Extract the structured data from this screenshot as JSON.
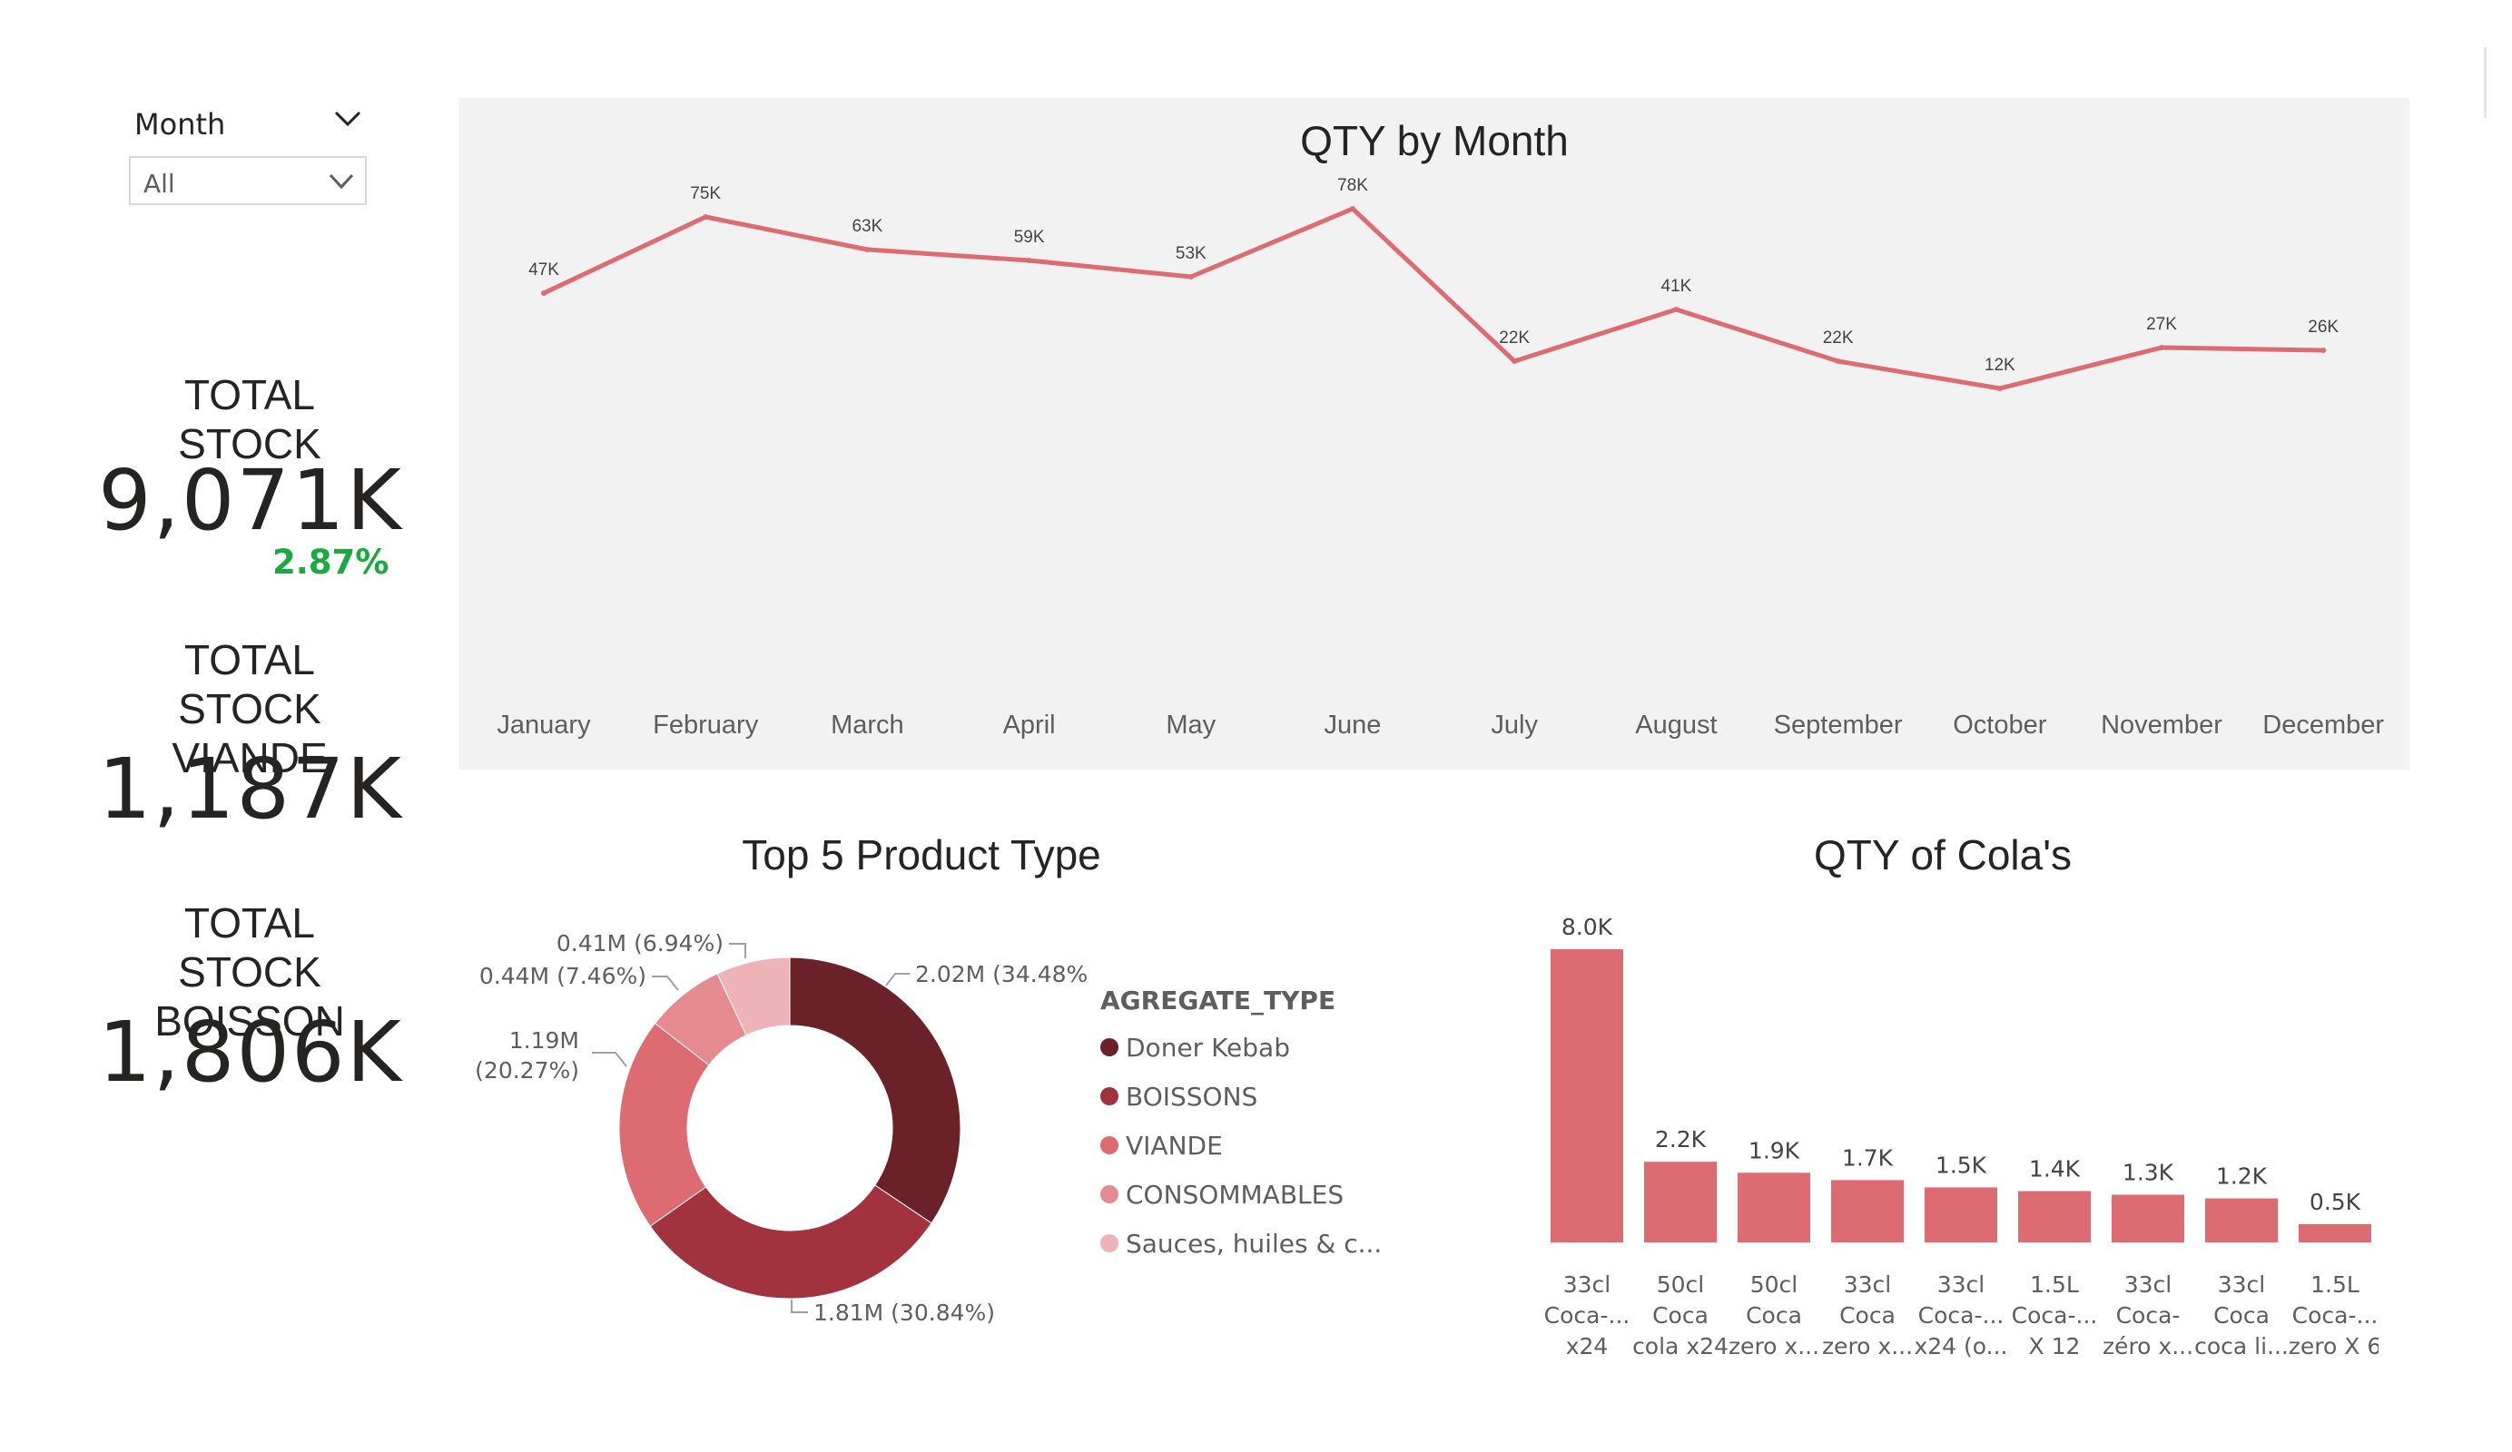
{
  "slicer": {
    "title": "Month",
    "value": "All"
  },
  "kpis": {
    "total_stock": {
      "label": "TOTAL STOCK",
      "value": "9,071K",
      "delta": "2.87%"
    },
    "total_stock_viande": {
      "label_line1": "TOTAL STOCK",
      "label_line2": "VIANDE",
      "value": "1,187K"
    },
    "total_stock_boisson": {
      "label_line1": "TOTAL STOCK",
      "label_line2": "BOISSON",
      "value": "1,806K"
    }
  },
  "colors": {
    "line": "#dd6b72",
    "bar": "#dd6b72",
    "panel_bg": "#f2f2f2",
    "delta_green": "#1aab40",
    "donut": [
      "#6b2128",
      "#a1323e",
      "#dd6b72",
      "#e58b90",
      "#eeb3b6"
    ]
  },
  "icons": {
    "slicer_toggle": "chevron-down-icon",
    "dropdown": "chevron-down-icon"
  },
  "chart_data": [
    {
      "type": "line",
      "title": "QTY by Month",
      "categories": [
        "January",
        "February",
        "March",
        "April",
        "May",
        "June",
        "July",
        "August",
        "September",
        "October",
        "November",
        "December"
      ],
      "values": [
        47,
        75,
        63,
        59,
        53,
        78,
        22,
        41,
        22,
        12,
        27,
        26
      ],
      "value_unit": "K",
      "data_labels": [
        "47K",
        "75K",
        "63K",
        "59K",
        "53K",
        "78K",
        "22K",
        "41K",
        "22K",
        "12K",
        "27K",
        "26K"
      ],
      "xlabel": "",
      "ylabel": "",
      "ylim": [
        0,
        90
      ],
      "grid": false
    },
    {
      "type": "pie",
      "donut": true,
      "title": "Top 5 Product Type",
      "legend_title": "AGREGATE_TYPE",
      "legend_position": "right",
      "slices": [
        {
          "name": "Doner Kebab",
          "value": 2.02,
          "label": "2.02M (34.48%)"
        },
        {
          "name": "BOISSONS",
          "value": 1.81,
          "label": "1.81M (30.84%)"
        },
        {
          "name": "VIANDE",
          "value": 1.19,
          "label_line1": "1.19M",
          "label_line2": "(20.27%)"
        },
        {
          "name": "CONSOMMABLES",
          "value": 0.44,
          "label": "0.44M (7.46%)"
        },
        {
          "name": "Sauces, huiles & c...",
          "value": 0.41,
          "label": "0.41M (6.94%)"
        }
      ]
    },
    {
      "type": "bar",
      "title": "QTY of Cola's",
      "categories": [
        [
          "33cl",
          "Coca-...",
          "x24"
        ],
        [
          "50cl",
          "Coca",
          "cola x24"
        ],
        [
          "50cl",
          "Coca",
          "zero x..."
        ],
        [
          "33cl",
          "Coca",
          "zero x..."
        ],
        [
          "33cl",
          "Coca-...",
          "x24 (o..."
        ],
        [
          "1.5L",
          "Coca-...",
          "X 12"
        ],
        [
          "33cl",
          "Coca-",
          "zéro x..."
        ],
        [
          "33cl",
          "Coca",
          "coca li..."
        ],
        [
          "1.5L",
          "Coca-...",
          "zero X 6"
        ]
      ],
      "values": [
        8.0,
        2.2,
        1.9,
        1.7,
        1.5,
        1.4,
        1.3,
        1.2,
        0.5
      ],
      "data_labels": [
        "8.0K",
        "2.2K",
        "1.9K",
        "1.7K",
        "1.5K",
        "1.4K",
        "1.3K",
        "1.2K",
        "0.5K"
      ],
      "ylim": [
        0,
        8.0
      ],
      "grid": false
    }
  ]
}
